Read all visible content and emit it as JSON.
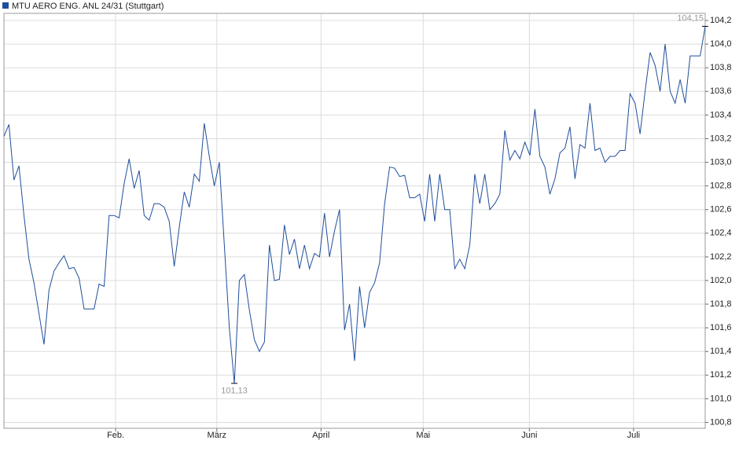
{
  "chart_data": {
    "type": "line",
    "series": [
      {
        "name": "MTU AERO ENG. ANL 24/31 (Stuttgart)",
        "color": "#1f4e9c",
        "values": [
          103.22,
          103.32,
          102.85,
          102.97,
          102.55,
          102.18,
          101.98,
          101.72,
          101.46,
          101.92,
          102.08,
          102.15,
          102.21,
          102.1,
          102.11,
          102.02,
          101.76,
          101.76,
          101.76,
          101.97,
          101.95,
          102.55,
          102.55,
          102.53,
          102.82,
          103.03,
          102.78,
          102.93,
          102.55,
          102.51,
          102.65,
          102.65,
          102.62,
          102.5,
          102.12,
          102.45,
          102.75,
          102.62,
          102.9,
          102.84,
          103.33,
          103.05,
          102.8,
          103.0,
          102.3,
          101.6,
          101.13,
          102.0,
          102.05,
          101.75,
          101.5,
          101.4,
          101.48,
          102.3,
          102.0,
          102.01,
          102.47,
          102.22,
          102.35,
          102.1,
          102.3,
          102.1,
          102.23,
          102.2,
          102.57,
          102.2,
          102.42,
          102.6,
          101.58,
          101.8,
          101.32,
          101.95,
          101.6,
          101.9,
          101.98,
          102.15,
          102.65,
          102.96,
          102.95,
          102.88,
          102.89,
          102.7,
          102.7,
          102.73,
          102.5,
          102.9,
          102.5,
          102.9,
          102.6,
          102.6,
          102.1,
          102.18,
          102.1,
          102.3,
          102.9,
          102.65,
          102.9,
          102.6,
          102.65,
          102.73,
          103.27,
          103.02,
          103.1,
          103.03,
          103.17,
          103.06,
          103.45,
          103.05,
          102.96,
          102.73,
          102.86,
          103.08,
          103.12,
          103.3,
          102.86,
          103.15,
          103.12,
          103.5,
          103.1,
          103.12,
          103.0,
          103.05,
          103.05,
          103.1,
          103.1,
          103.58,
          103.5,
          103.24,
          103.6,
          103.93,
          103.82,
          103.6,
          104.0,
          103.6,
          103.5,
          103.7,
          103.5,
          103.9,
          103.9,
          103.9,
          104.15
        ]
      }
    ],
    "xlim": [
      0,
      140
    ],
    "xticks": [
      {
        "value": 22.3,
        "label": "Feb."
      },
      {
        "value": 42.5,
        "label": "März"
      },
      {
        "value": 63.3,
        "label": "April"
      },
      {
        "value": 83.7,
        "label": "Mai"
      },
      {
        "value": 104.9,
        "label": "Juni"
      },
      {
        "value": 125.7,
        "label": "Juli"
      }
    ],
    "ylim": [
      100.75,
      104.26
    ],
    "yticks": [
      {
        "value": 100.8,
        "label": "100,8"
      },
      {
        "value": 101.0,
        "label": "101,0"
      },
      {
        "value": 101.2,
        "label": "101,2"
      },
      {
        "value": 101.4,
        "label": "101,4"
      },
      {
        "value": 101.6,
        "label": "101,6"
      },
      {
        "value": 101.8,
        "label": "101,8"
      },
      {
        "value": 102.0,
        "label": "102,0"
      },
      {
        "value": 102.2,
        "label": "102,2"
      },
      {
        "value": 102.4,
        "label": "102,4"
      },
      {
        "value": 102.6,
        "label": "102,6"
      },
      {
        "value": 102.8,
        "label": "102,8"
      },
      {
        "value": 103.0,
        "label": "103,0"
      },
      {
        "value": 103.2,
        "label": "103,2"
      },
      {
        "value": 103.4,
        "label": "103,4"
      },
      {
        "value": 103.6,
        "label": "103,6"
      },
      {
        "value": 103.8,
        "label": "103,8"
      },
      {
        "value": 104.0,
        "label": "104,0"
      },
      {
        "value": 104.2,
        "label": "104,2"
      }
    ],
    "annotations": [
      {
        "index": 46,
        "value": 101.13,
        "label": "101,13"
      },
      {
        "index": 140,
        "value": 104.15,
        "label": "104,15"
      }
    ],
    "grid": true
  }
}
